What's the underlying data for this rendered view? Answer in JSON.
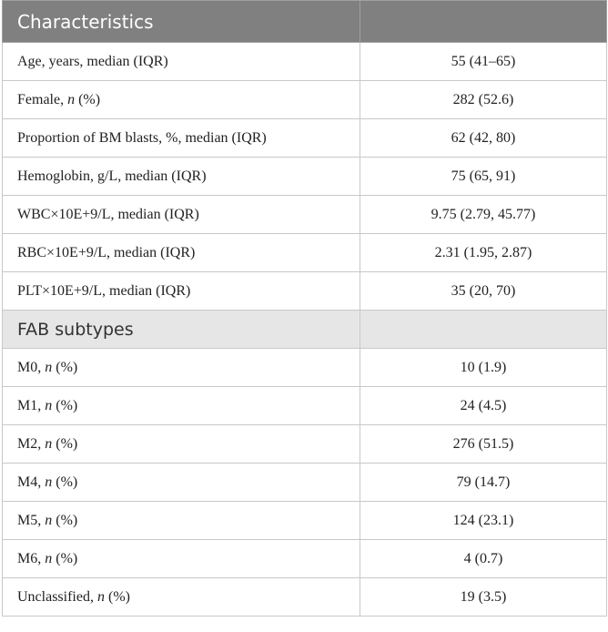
{
  "header": {
    "title": "Characteristics",
    "value_header": ""
  },
  "rows_top": [
    {
      "label": "Age, years, median (IQR)",
      "value": "55 (41–65)"
    },
    {
      "label_pre": "Female, ",
      "label_italic": "n",
      "label_post": " (%)",
      "value": "282 (52.6)"
    },
    {
      "label": "Proportion of BM blasts, %, median (IQR)",
      "value": "62 (42, 80)"
    },
    {
      "label": "Hemoglobin, g/L, median (IQR)",
      "value": "75 (65, 91)"
    },
    {
      "label": "WBC×10E+9/L, median (IQR)",
      "value": "9.75 (2.79, 45.77)"
    },
    {
      "label": "RBC×10E+9/L, median (IQR)",
      "value": "2.31 (1.95, 2.87)"
    },
    {
      "label": "PLT×10E+9/L, median (IQR)",
      "value": "35 (20, 70)"
    }
  ],
  "section": {
    "title": "FAB subtypes",
    "value": ""
  },
  "rows_fab": [
    {
      "label_pre": "M0, ",
      "label_italic": "n",
      "label_post": " (%)",
      "value": "10 (1.9)"
    },
    {
      "label_pre": "M1, ",
      "label_italic": "n",
      "label_post": " (%)",
      "value": "24 (4.5)"
    },
    {
      "label_pre": "M2, ",
      "label_italic": "n",
      "label_post": " (%)",
      "value": "276 (51.5)"
    },
    {
      "label_pre": "M4, ",
      "label_italic": "n",
      "label_post": " (%)",
      "value": "79 (14.7)"
    },
    {
      "label_pre": "M5, ",
      "label_italic": "n",
      "label_post": " (%)",
      "value": "124 (23.1)"
    },
    {
      "label_pre": "M6, ",
      "label_italic": "n",
      "label_post": " (%)",
      "value": "4 (0.7)"
    },
    {
      "label_pre": "Unclassified, ",
      "label_italic": "n",
      "label_post": " (%)",
      "value": "19 (3.5)"
    }
  ]
}
